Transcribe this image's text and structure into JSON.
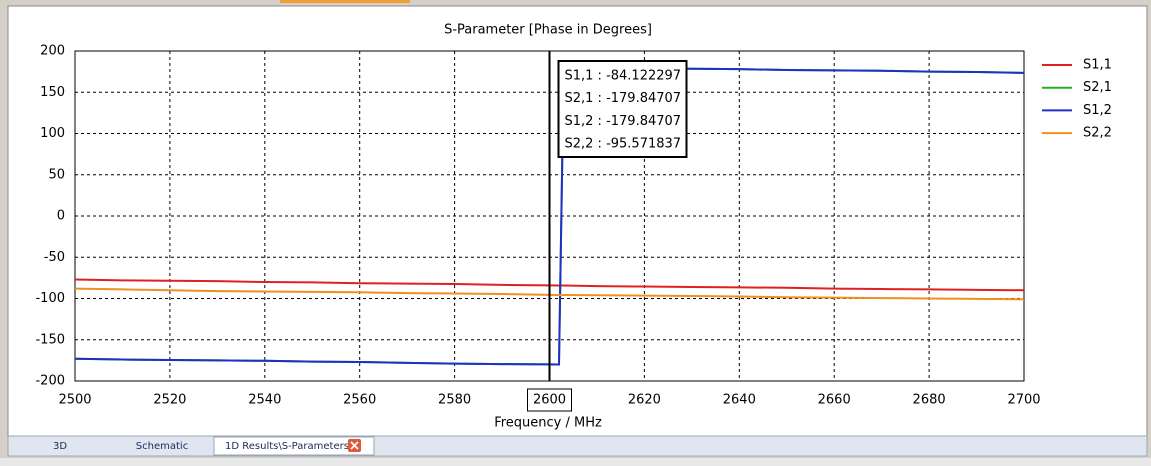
{
  "chart_data": {
    "type": "line",
    "title": "S-Parameter [Phase in Degrees]",
    "x_label": "Frequency / MHz",
    "x": [
      2500,
      2510,
      2520,
      2530,
      2540,
      2550,
      2560,
      2570,
      2580,
      2590,
      2600,
      2602,
      2603,
      2610,
      2620,
      2630,
      2640,
      2650,
      2660,
      2670,
      2680,
      2690,
      2700
    ],
    "series": [
      {
        "name": "S1,1",
        "color": "#e02020",
        "values": [
          -77,
          -78,
          -78.5,
          -79,
          -80,
          -80.5,
          -81.5,
          -82,
          -82.5,
          -83.5,
          -84.1,
          -84.2,
          -84.3,
          -85,
          -85.5,
          -86,
          -86.5,
          -87,
          -88,
          -88.5,
          -89,
          -89.5,
          -90
        ]
      },
      {
        "name": "S2,1",
        "color": "#20b020",
        "values": [
          -173,
          -174,
          -174.5,
          -175,
          -175.5,
          -176.5,
          -177,
          -178,
          -179,
          -179.5,
          -179.85,
          -180,
          180,
          179.5,
          179,
          178.5,
          178,
          177,
          176.5,
          176,
          175,
          174.5,
          173.5
        ]
      },
      {
        "name": "S1,2",
        "color": "#1f2fc8",
        "values": [
          -173,
          -174,
          -174.5,
          -175,
          -175.5,
          -176.5,
          -177,
          -178,
          -179,
          -179.5,
          -179.85,
          -180,
          180,
          179.5,
          179,
          178.5,
          178,
          177,
          176.5,
          176,
          175,
          174.5,
          173.5
        ]
      },
      {
        "name": "S2,2",
        "color": "#f0901e",
        "values": [
          -88,
          -89,
          -90,
          -91,
          -91.5,
          -92,
          -92.5,
          -93.5,
          -94,
          -94.5,
          -95.6,
          -95.7,
          -95.8,
          -96,
          -96.5,
          -97,
          -97.5,
          -98.5,
          -99,
          -99.5,
          -100,
          -100.5,
          -101
        ]
      }
    ],
    "xlim": [
      2500,
      2700
    ],
    "xticks": [
      2500,
      2520,
      2540,
      2560,
      2580,
      2600,
      2620,
      2640,
      2660,
      2680,
      2700
    ],
    "ylim": [
      -200,
      200
    ],
    "yticks": [
      -200,
      -150,
      -100,
      -50,
      0,
      50,
      100,
      150,
      200
    ],
    "grid": true,
    "legend": "right",
    "marker_x": 2600,
    "marker_readout": [
      "S1,1 : -84.122297",
      "S2,1 : -179.84707",
      "S1,2 : -179.84707",
      "S2,2 : -95.571837"
    ]
  },
  "tabs": [
    "3D",
    "Schematic",
    "1D Results\\S-Parameters"
  ]
}
